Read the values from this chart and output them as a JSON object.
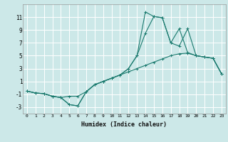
{
  "xlabel": "Humidex (Indice chaleur)",
  "bg_color": "#cce8e8",
  "grid_color": "#ffffff",
  "line_color": "#1a7a6e",
  "xlim": [
    -0.5,
    23.5
  ],
  "ylim": [
    -4,
    13
  ],
  "xticks": [
    0,
    1,
    2,
    3,
    4,
    5,
    6,
    7,
    8,
    9,
    10,
    11,
    12,
    13,
    14,
    15,
    16,
    17,
    18,
    19,
    20,
    21,
    22,
    23
  ],
  "yticks": [
    -3,
    -1,
    1,
    3,
    5,
    7,
    9,
    11
  ],
  "series": [
    {
      "x": [
        0,
        1,
        2,
        3,
        4,
        5,
        6,
        7,
        8,
        9,
        10,
        11,
        12,
        13,
        14,
        15,
        16,
        17,
        18,
        19,
        20,
        21,
        22,
        23
      ],
      "y": [
        -0.5,
        -0.8,
        -0.9,
        -1.3,
        -1.5,
        -1.3,
        -1.3,
        -0.6,
        0.5,
        1.0,
        1.5,
        2.0,
        2.5,
        3.0,
        3.5,
        4.0,
        4.5,
        5.0,
        5.3,
        5.4,
        5.0,
        4.8,
        4.6,
        2.2
      ]
    },
    {
      "x": [
        0,
        1,
        2,
        3,
        4,
        5,
        6,
        7,
        8,
        9,
        10,
        11,
        12,
        13,
        14,
        15,
        16,
        17,
        18,
        19,
        20,
        21,
        22,
        23
      ],
      "y": [
        -0.5,
        -0.8,
        -0.9,
        -1.3,
        -1.5,
        -2.6,
        -2.8,
        -0.6,
        0.5,
        1.0,
        1.5,
        2.0,
        3.0,
        5.0,
        11.8,
        11.1,
        10.9,
        7.0,
        9.2,
        5.5,
        5.0,
        4.8,
        4.6,
        2.2
      ]
    },
    {
      "x": [
        0,
        1,
        2,
        3,
        4,
        5,
        6,
        7,
        8,
        9,
        10,
        11,
        12,
        13,
        14,
        15,
        16,
        17,
        18,
        19,
        20,
        21,
        22,
        23
      ],
      "y": [
        -0.5,
        -0.8,
        -0.9,
        -1.3,
        -1.5,
        -2.6,
        -2.8,
        -0.6,
        0.5,
        1.0,
        1.5,
        2.0,
        3.0,
        5.0,
        8.5,
        11.1,
        10.9,
        7.0,
        6.5,
        9.2,
        5.0,
        4.8,
        4.6,
        2.2
      ]
    }
  ]
}
